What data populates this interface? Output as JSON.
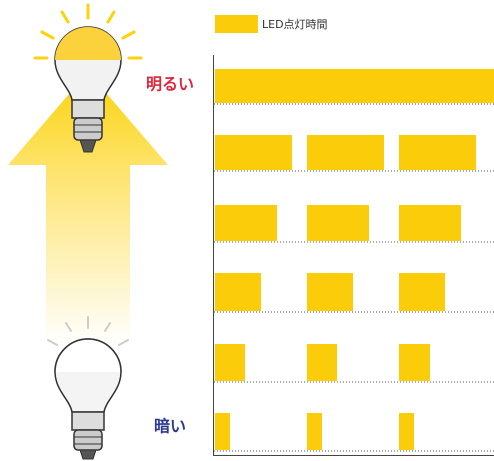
{
  "legend": {
    "label": "LED点灯時間"
  },
  "labels": {
    "bright": "明るい",
    "dark": "暗い"
  }
}
